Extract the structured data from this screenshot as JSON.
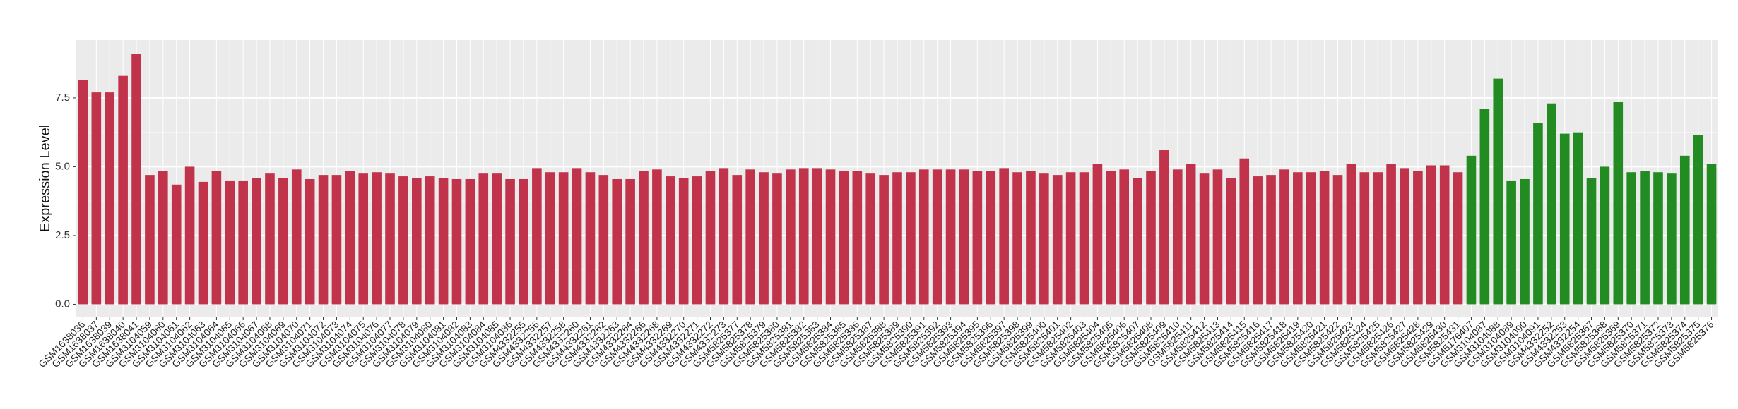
{
  "chart_data": {
    "type": "bar",
    "y_label": "Expression Level",
    "categories": [
      "GSM1638036",
      "GSM1638037",
      "GSM1638039",
      "GSM1638040",
      "GSM1638041",
      "GSM3104059",
      "GSM3104060",
      "GSM3104061",
      "GSM3104062",
      "GSM3104063",
      "GSM3104064",
      "GSM3104065",
      "GSM3104066",
      "GSM3104067",
      "GSM3104068",
      "GSM3104069",
      "GSM3104070",
      "GSM3104071",
      "GSM3104072",
      "GSM3104073",
      "GSM3104074",
      "GSM3104075",
      "GSM3104076",
      "GSM3104077",
      "GSM3104078",
      "GSM3104079",
      "GSM3104080",
      "GSM3104081",
      "GSM3104082",
      "GSM3104083",
      "GSM3104084",
      "GSM3104085",
      "GSM3104086",
      "GSM4332255",
      "GSM4332256",
      "GSM4332257",
      "GSM4332258",
      "GSM4332260",
      "GSM4332261",
      "GSM4332262",
      "GSM4332263",
      "GSM4332264",
      "GSM4332266",
      "GSM4332268",
      "GSM4332269",
      "GSM4332270",
      "GSM4332271",
      "GSM4332272",
      "GSM4332273",
      "GSM5825377",
      "GSM5825378",
      "GSM5825379",
      "GSM5825380",
      "GSM5825381",
      "GSM5825382",
      "GSM5825383",
      "GSM5825384",
      "GSM5825385",
      "GSM5825386",
      "GSM5825387",
      "GSM5825388",
      "GSM5825389",
      "GSM5825390",
      "GSM5825391",
      "GSM5825392",
      "GSM5825393",
      "GSM5825394",
      "GSM5825395",
      "GSM5825396",
      "GSM5825397",
      "GSM5825398",
      "GSM5825399",
      "GSM5825400",
      "GSM5825401",
      "GSM5825402",
      "GSM5825403",
      "GSM5825404",
      "GSM5825405",
      "GSM5825406",
      "GSM5825407",
      "GSM5825408",
      "GSM5825409",
      "GSM5825410",
      "GSM5825411",
      "GSM5825412",
      "GSM5825413",
      "GSM5825414",
      "GSM5825415",
      "GSM5825416",
      "GSM5825417",
      "GSM5825418",
      "GSM5825419",
      "GSM5825420",
      "GSM5825421",
      "GSM5825422",
      "GSM5825423",
      "GSM5825424",
      "GSM5825425",
      "GSM5825426",
      "GSM5825427",
      "GSM5825428",
      "GSM5825429",
      "GSM5825430",
      "GSM5825431",
      "GSM5176407",
      "GSM3104087",
      "GSM3104088",
      "GSM3104089",
      "GSM3104090",
      "GSM3104091",
      "GSM4332252",
      "GSM4332253",
      "GSM4332254",
      "GSM5825367",
      "GSM5825368",
      "GSM5825369",
      "GSM5825370",
      "GSM5825371",
      "GSM5825372",
      "GSM5825373",
      "GSM5825374",
      "GSM5825375",
      "GSM5825376"
    ],
    "values": [
      8.15,
      7.7,
      7.7,
      8.3,
      9.1,
      4.7,
      4.85,
      4.35,
      5.0,
      4.45,
      4.85,
      4.5,
      4.5,
      4.6,
      4.75,
      4.6,
      4.9,
      4.55,
      4.7,
      4.7,
      4.85,
      4.75,
      4.8,
      4.75,
      4.65,
      4.6,
      4.65,
      4.6,
      4.55,
      4.55,
      4.75,
      4.75,
      4.55,
      4.55,
      4.95,
      4.8,
      4.8,
      4.95,
      4.8,
      4.7,
      4.55,
      4.55,
      4.85,
      4.9,
      4.65,
      4.6,
      4.65,
      4.85,
      4.95,
      4.7,
      4.9,
      4.8,
      4.75,
      4.9,
      4.95,
      4.95,
      4.9,
      4.85,
      4.85,
      4.75,
      4.7,
      4.8,
      4.8,
      4.9,
      4.9,
      4.9,
      4.9,
      4.85,
      4.85,
      4.95,
      4.8,
      4.85,
      4.75,
      4.7,
      4.8,
      4.8,
      5.1,
      4.85,
      4.9,
      4.6,
      4.85,
      5.6,
      4.9,
      5.1,
      4.75,
      4.9,
      4.6,
      5.3,
      4.65,
      4.7,
      4.9,
      4.8,
      4.8,
      4.85,
      4.7,
      5.1,
      4.8,
      4.8,
      5.1,
      4.95,
      4.85,
      5.05,
      5.05,
      4.8,
      5.4,
      7.1,
      8.2,
      4.5,
      4.55,
      6.6,
      7.3,
      6.2,
      6.25,
      4.6,
      5.0,
      7.35,
      4.8,
      4.85,
      4.8,
      4.75,
      5.4,
      6.15,
      5.1
    ],
    "colors": [
      "#c1334a",
      "#c1334a",
      "#c1334a",
      "#c1334a",
      "#c1334a",
      "#c1334a",
      "#c1334a",
      "#c1334a",
      "#c1334a",
      "#c1334a",
      "#c1334a",
      "#c1334a",
      "#c1334a",
      "#c1334a",
      "#c1334a",
      "#c1334a",
      "#c1334a",
      "#c1334a",
      "#c1334a",
      "#c1334a",
      "#c1334a",
      "#c1334a",
      "#c1334a",
      "#c1334a",
      "#c1334a",
      "#c1334a",
      "#c1334a",
      "#c1334a",
      "#c1334a",
      "#c1334a",
      "#c1334a",
      "#c1334a",
      "#c1334a",
      "#c1334a",
      "#c1334a",
      "#c1334a",
      "#c1334a",
      "#c1334a",
      "#c1334a",
      "#c1334a",
      "#c1334a",
      "#c1334a",
      "#c1334a",
      "#c1334a",
      "#c1334a",
      "#c1334a",
      "#c1334a",
      "#c1334a",
      "#c1334a",
      "#c1334a",
      "#c1334a",
      "#c1334a",
      "#c1334a",
      "#c1334a",
      "#c1334a",
      "#c1334a",
      "#c1334a",
      "#c1334a",
      "#c1334a",
      "#c1334a",
      "#c1334a",
      "#c1334a",
      "#c1334a",
      "#c1334a",
      "#c1334a",
      "#c1334a",
      "#c1334a",
      "#c1334a",
      "#c1334a",
      "#c1334a",
      "#c1334a",
      "#c1334a",
      "#c1334a",
      "#c1334a",
      "#c1334a",
      "#c1334a",
      "#c1334a",
      "#c1334a",
      "#c1334a",
      "#c1334a",
      "#c1334a",
      "#c1334a",
      "#c1334a",
      "#c1334a",
      "#c1334a",
      "#c1334a",
      "#c1334a",
      "#c1334a",
      "#c1334a",
      "#c1334a",
      "#c1334a",
      "#c1334a",
      "#c1334a",
      "#c1334a",
      "#c1334a",
      "#c1334a",
      "#c1334a",
      "#c1334a",
      "#c1334a",
      "#c1334a",
      "#c1334a",
      "#c1334a",
      "#c1334a",
      "#c1334a",
      "#228b22",
      "#228b22",
      "#228b22",
      "#228b22",
      "#228b22",
      "#228b22",
      "#228b22",
      "#228b22",
      "#228b22",
      "#228b22",
      "#228b22",
      "#228b22",
      "#228b22",
      "#228b22",
      "#228b22",
      "#228b22",
      "#228b22",
      "#228b22",
      "#228b22"
    ],
    "ylim": [
      -0.45,
      9.6
    ],
    "yticks": [
      {
        "value": 0,
        "label": "0.0"
      },
      2.5,
      {
        "value": 5,
        "label": "5.0"
      },
      7.5
    ],
    "grid": true
  }
}
